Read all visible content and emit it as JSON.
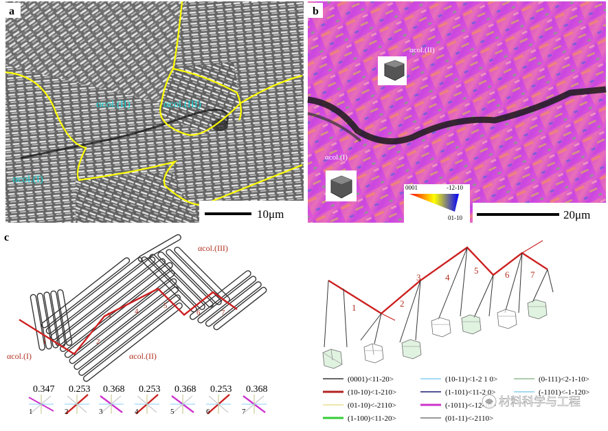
{
  "panel_a": {
    "letter": "a",
    "labels": [
      "αcol.(II)",
      "αcol.(III)",
      "αcol.(I)"
    ],
    "scalebar": "10μm"
  },
  "panel_b": {
    "letter": "b",
    "labels": [
      "αcol.(II)",
      "αcol.(I)"
    ],
    "legend": {
      "top_left": "0001",
      "top_right": "-12-10",
      "bottom_right": "01-10"
    },
    "scalebar": "20μm"
  },
  "panel_c": {
    "letter": "c",
    "colony_labels": [
      "αcol.(III)",
      "αcol.(I)",
      "αcol.(II)"
    ],
    "path_numbers": [
      "1",
      "2",
      "3",
      "4",
      "5",
      "6",
      "7"
    ],
    "misorientations": [
      {
        "n": "1",
        "value": "0.347"
      },
      {
        "n": "2",
        "value": "0.253"
      },
      {
        "n": "3",
        "value": "0.368"
      },
      {
        "n": "4",
        "value": "0.253"
      },
      {
        "n": "5",
        "value": "0.368"
      },
      {
        "n": "6",
        "value": "0.253"
      },
      {
        "n": "7",
        "value": "0.368"
      }
    ],
    "right_numbers": [
      "1",
      "2",
      "3",
      "4",
      "5",
      "6",
      "7"
    ],
    "slip_legend": [
      {
        "label": "(0001)<11-20>",
        "color": "#333333"
      },
      {
        "label": "(10-11)<1-2 1 0>",
        "color": "#87cefa"
      },
      {
        "label": "(0-111)<2-1-10>",
        "color": "#8fbc8f"
      },
      {
        "label": "(10-10)<1-210>",
        "color": "#b22222"
      },
      {
        "label": "(1-101)<11-2 0>",
        "color": "#191970"
      },
      {
        "label": "(-1101)<-1-120>",
        "color": "#87ceeb"
      },
      {
        "label": "(01-10)<-2110>",
        "color": "#eee8aa"
      },
      {
        "label": "(-1011)<-12-10>",
        "color": "#cc33cc"
      },
      {
        "label": "(1-100)<11-20>",
        "color": "#33cc33"
      },
      {
        "label": "(01-11)<-2110>",
        "color": "#777777"
      }
    ],
    "watermark": "材料科学与工程"
  },
  "colors": {
    "boundary": "#ffff00",
    "crack_path": "#cc2020",
    "label_cyan": "#19d3d3",
    "label_red": "#b03020"
  }
}
